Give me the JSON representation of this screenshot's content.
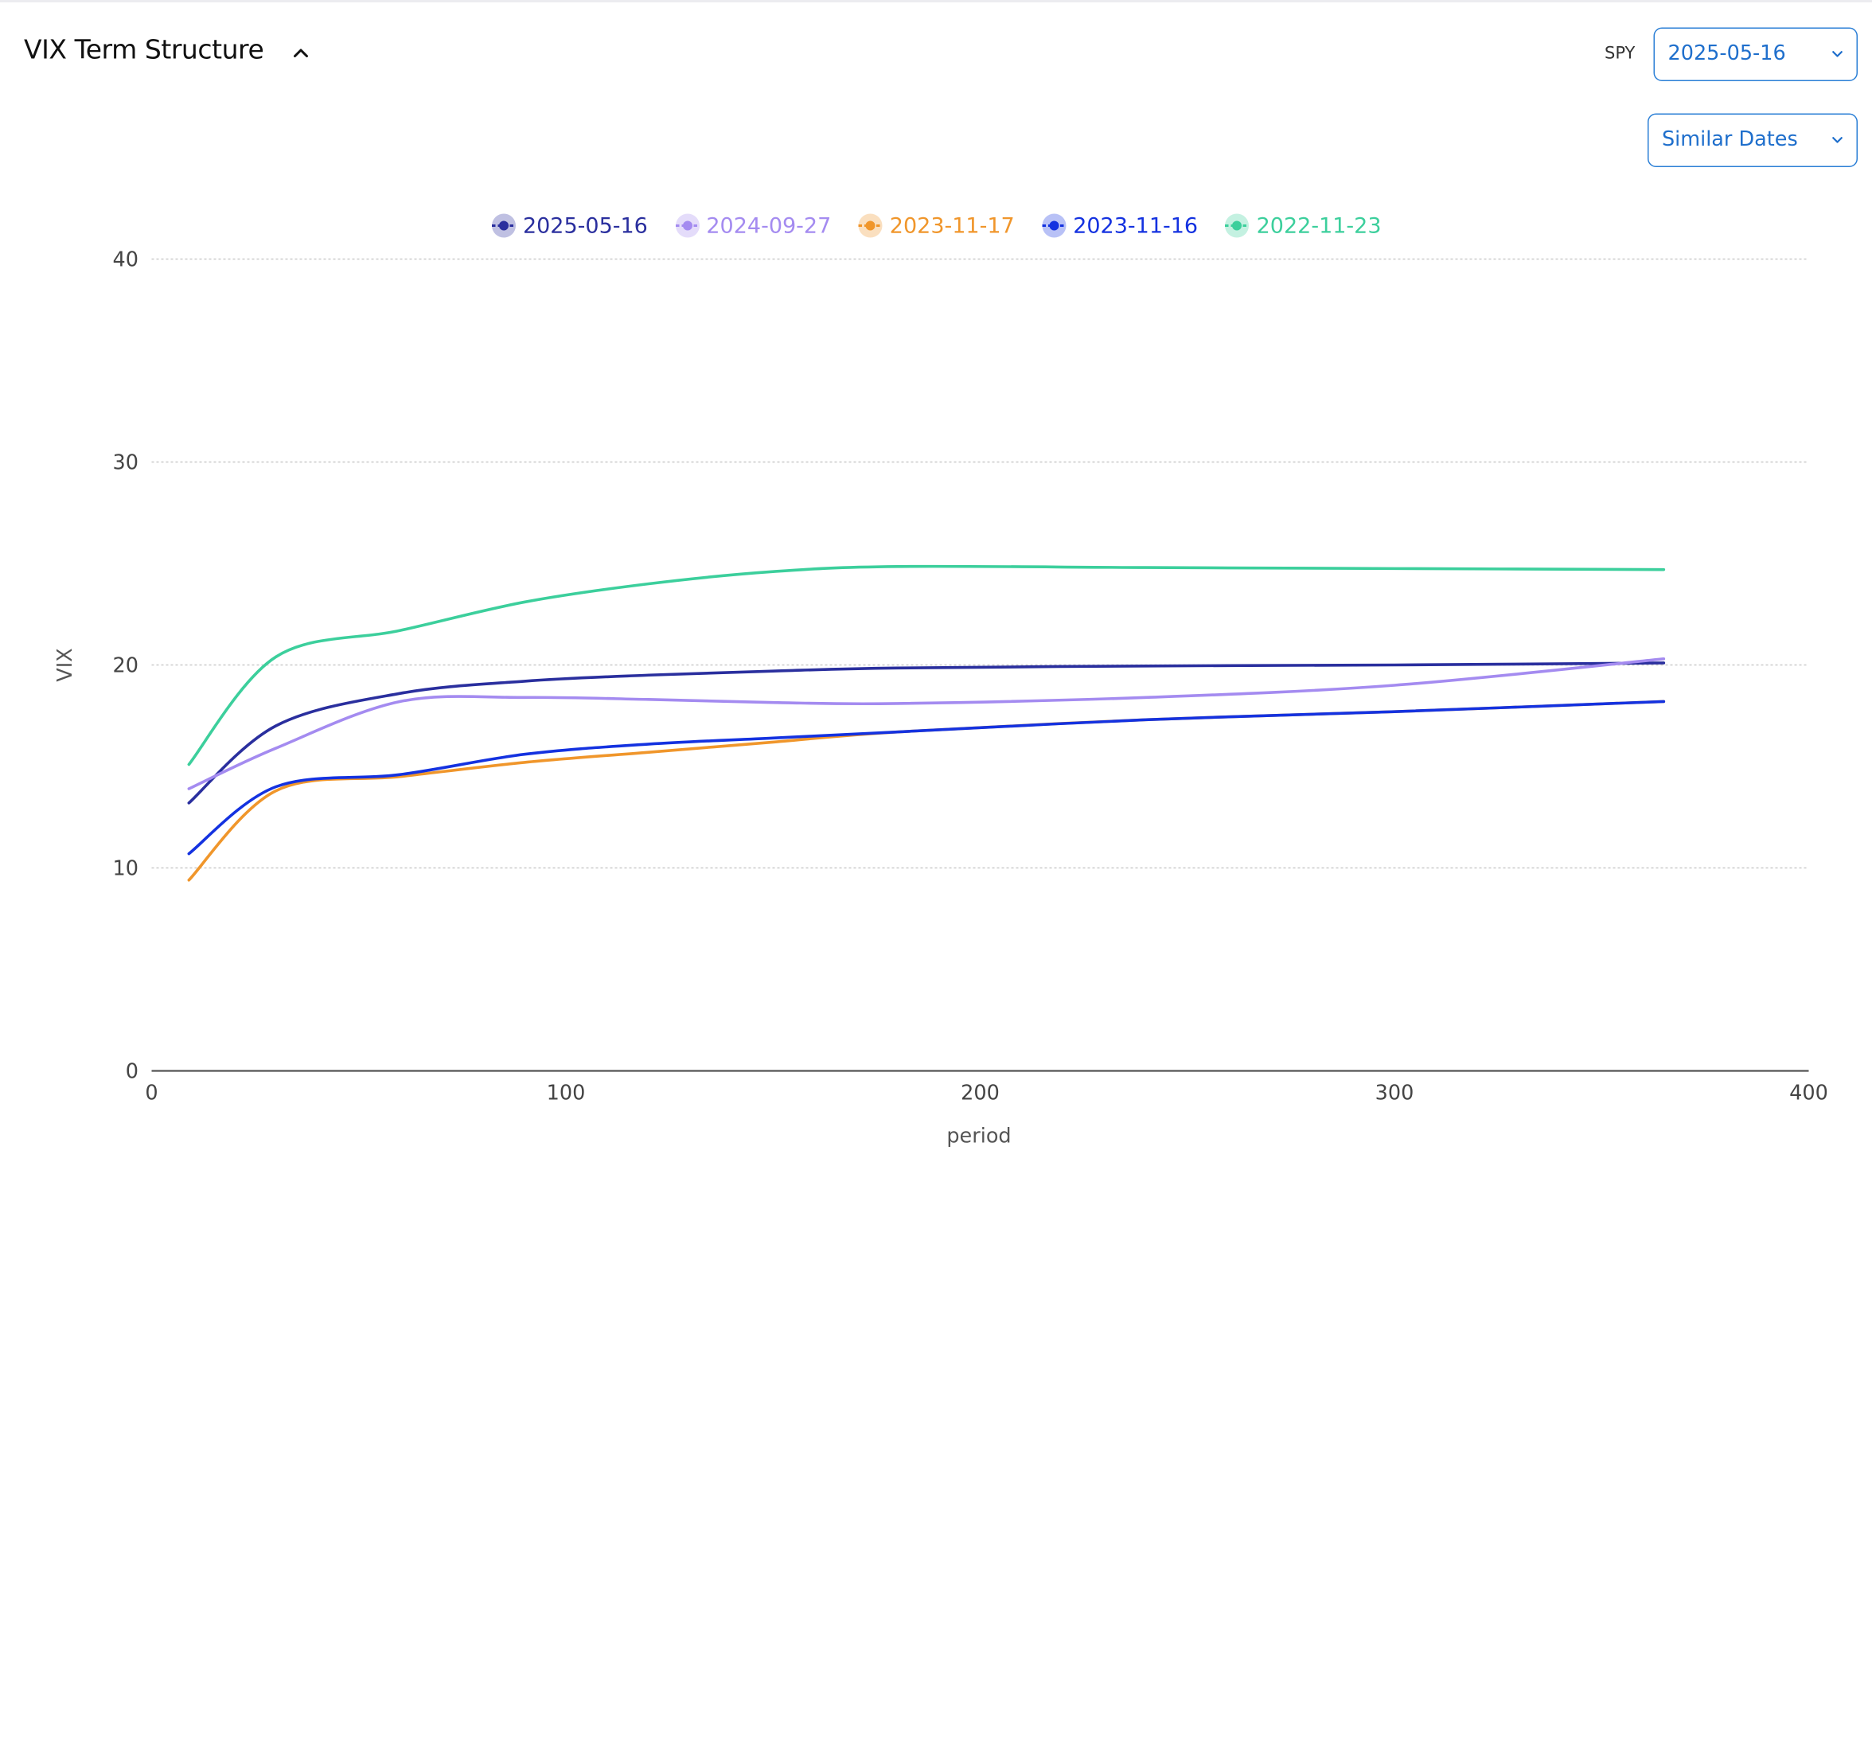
{
  "header": {
    "title": "VIX Term Structure",
    "ticker_label": "SPY",
    "date_select_value": "2025-05-16",
    "similar_select_value": "Similar Dates"
  },
  "chart_data": {
    "type": "line",
    "xlabel": "period",
    "ylabel": "VIX",
    "xlim": [
      0,
      400
    ],
    "ylim": [
      0,
      40
    ],
    "x_ticks": [
      0,
      100,
      200,
      300,
      400
    ],
    "y_ticks": [
      0,
      10,
      20,
      30,
      40
    ],
    "grid": "horizontal dotted",
    "legend_position": "top-center",
    "series": [
      {
        "name": "2025-05-16",
        "color": "#2a2f9e",
        "x": [
          9,
          30,
          60,
          90,
          120,
          150,
          180,
          240,
          300,
          365
        ],
        "y": [
          13.2,
          17.0,
          18.6,
          19.2,
          19.5,
          19.7,
          19.85,
          19.95,
          20.0,
          20.1
        ]
      },
      {
        "name": "2024-09-27",
        "color": "#a48bf0",
        "x": [
          9,
          30,
          60,
          90,
          120,
          150,
          180,
          240,
          300,
          365
        ],
        "y": [
          13.9,
          15.9,
          18.2,
          18.4,
          18.3,
          18.15,
          18.1,
          18.4,
          19.0,
          20.3
        ]
      },
      {
        "name": "2023-11-17",
        "color": "#f0962b",
        "x": [
          9,
          30,
          60,
          90,
          120,
          150,
          180,
          240,
          300,
          365
        ],
        "y": [
          9.4,
          13.8,
          14.5,
          15.2,
          15.7,
          16.2,
          16.7,
          17.3,
          17.7,
          18.2
        ]
      },
      {
        "name": "2023-11-16",
        "color": "#1432e0",
        "x": [
          9,
          30,
          60,
          90,
          120,
          150,
          180,
          240,
          300,
          365
        ],
        "y": [
          10.7,
          14.0,
          14.6,
          15.6,
          16.1,
          16.4,
          16.7,
          17.3,
          17.7,
          18.2
        ]
      },
      {
        "name": "2022-11-23",
        "color": "#3ccf9c",
        "x": [
          9,
          30,
          60,
          90,
          120,
          150,
          180,
          240,
          300,
          365
        ],
        "y": [
          15.1,
          20.4,
          21.7,
          23.1,
          24.0,
          24.6,
          24.85,
          24.8,
          24.75,
          24.7
        ]
      }
    ]
  }
}
